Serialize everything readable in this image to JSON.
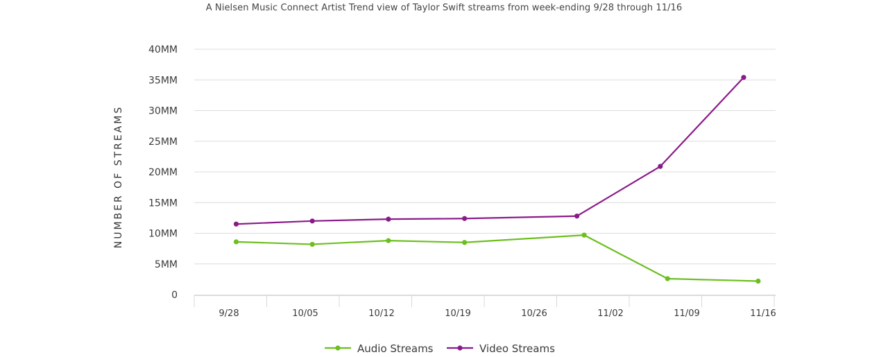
{
  "chart_data": {
    "type": "line",
    "title": "A Nielsen Music Connect Artist Trend view of Taylor Swift streams from week-ending 9/28 through 11/16",
    "ylabel": "NUMBER OF STREAMS",
    "xlabel": "",
    "categories": [
      "9/28",
      "10/05",
      "10/12",
      "10/19",
      "10/26",
      "11/02",
      "11/09",
      "11/16"
    ],
    "y_ticks": [
      {
        "value": 0,
        "label": "0"
      },
      {
        "value": 5,
        "label": "5MM"
      },
      {
        "value": 10,
        "label": "10MM"
      },
      {
        "value": 15,
        "label": "15MM"
      },
      {
        "value": 20,
        "label": "20MM"
      },
      {
        "value": 25,
        "label": "25MM"
      },
      {
        "value": 30,
        "label": "30MM"
      },
      {
        "value": 35,
        "label": "35MM"
      },
      {
        "value": 40,
        "label": "40MM"
      }
    ],
    "ylim": [
      0,
      40
    ],
    "grid": true,
    "legend_position": "bottom-center",
    "series": [
      {
        "name": "Audio Streams",
        "color": "#6cbf1f",
        "points": [
          {
            "x": 0.1,
            "y": 8.6
          },
          {
            "x": 1.15,
            "y": 8.2
          },
          {
            "x": 2.2,
            "y": 8.8
          },
          {
            "x": 3.25,
            "y": 8.5
          },
          {
            "x": 4.9,
            "y": 9.7
          },
          {
            "x": 6.05,
            "y": 2.6
          },
          {
            "x": 7.3,
            "y": 2.2
          }
        ]
      },
      {
        "name": "Video Streams",
        "color": "#8a1a8a",
        "points": [
          {
            "x": 0.1,
            "y": 11.5
          },
          {
            "x": 1.15,
            "y": 12.0
          },
          {
            "x": 2.2,
            "y": 12.3
          },
          {
            "x": 3.25,
            "y": 12.4
          },
          {
            "x": 4.8,
            "y": 12.8
          },
          {
            "x": 5.95,
            "y": 20.9
          },
          {
            "x": 7.1,
            "y": 35.4
          }
        ]
      }
    ]
  }
}
